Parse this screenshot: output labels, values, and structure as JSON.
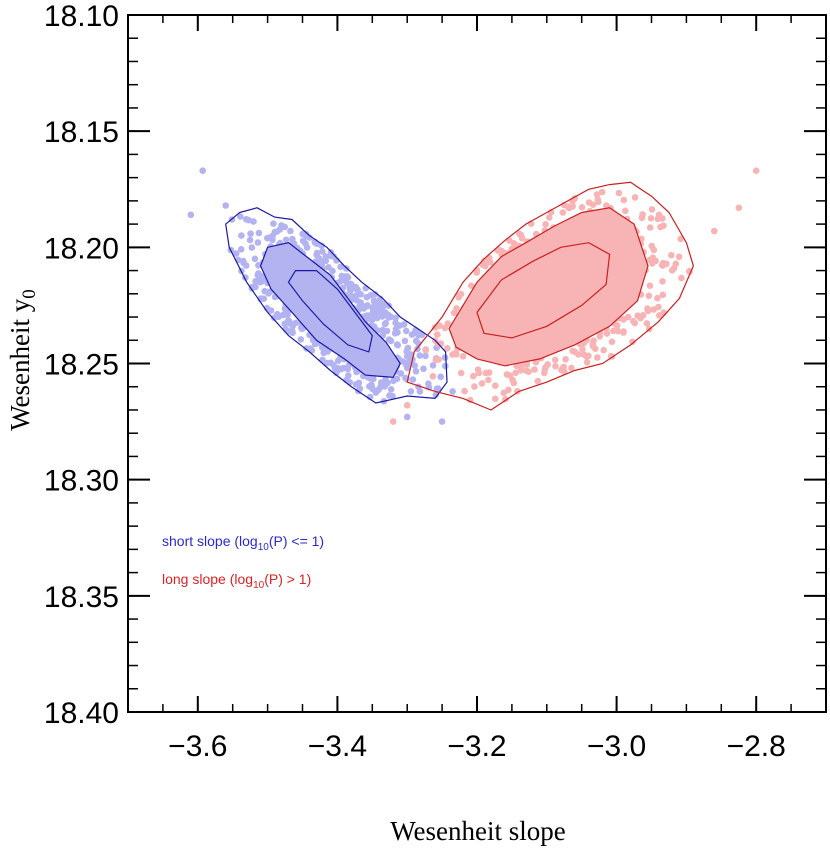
{
  "chart_data": {
    "type": "scatter",
    "title": "",
    "xlabel": "Wesenheit slope",
    "ylabel": "Wesenheit y",
    "ylabel_subscript": "0",
    "xlim": [
      -3.7,
      -2.7
    ],
    "ylim": [
      18.1,
      18.4
    ],
    "y_inverted": true,
    "grid": false,
    "x_ticks": [
      -3.6,
      -3.4,
      -3.2,
      -3.0,
      -2.8
    ],
    "x_tick_labels": [
      "−3.6",
      "−3.4",
      "−3.2",
      "−3.0",
      "−2.8"
    ],
    "y_ticks": [
      18.1,
      18.15,
      18.2,
      18.25,
      18.3,
      18.35,
      18.4
    ],
    "y_tick_labels": [
      "18.10",
      "18.15",
      "18.20",
      "18.25",
      "18.30",
      "18.35",
      "18.40"
    ],
    "series": [
      {
        "name": "short slope",
        "legend_main": "short slope (log",
        "legend_sub": "10",
        "legend_tail": "(P) <= 1)",
        "point_color": "#b3b3f2",
        "line_color": "#1a1aa6",
        "text_color": "#2a2ad0",
        "center": [
          -3.4,
          18.225
        ],
        "outliers": [
          [
            -3.61,
            18.186
          ],
          [
            -3.593,
            18.167
          ],
          [
            -3.56,
            18.182
          ],
          [
            -3.3,
            18.273
          ],
          [
            -3.25,
            18.275
          ],
          [
            -3.235,
            18.262
          ]
        ],
        "contours": [
          [
            [
              -3.54,
              18.185
            ],
            [
              -3.515,
              18.183
            ],
            [
              -3.49,
              18.187
            ],
            [
              -3.465,
              18.188
            ],
            [
              -3.44,
              18.195
            ],
            [
              -3.415,
              18.2
            ],
            [
              -3.39,
              18.208
            ],
            [
              -3.365,
              18.215
            ],
            [
              -3.335,
              18.222
            ],
            [
              -3.31,
              18.23
            ],
            [
              -3.285,
              18.235
            ],
            [
              -3.26,
              18.24
            ],
            [
              -3.245,
              18.245
            ],
            [
              -3.243,
              18.258
            ],
            [
              -3.26,
              18.265
            ],
            [
              -3.3,
              18.264
            ],
            [
              -3.345,
              18.267
            ],
            [
              -3.38,
              18.26
            ],
            [
              -3.41,
              18.253
            ],
            [
              -3.44,
              18.245
            ],
            [
              -3.47,
              18.238
            ],
            [
              -3.5,
              18.228
            ],
            [
              -3.53,
              18.215
            ],
            [
              -3.555,
              18.2
            ],
            [
              -3.56,
              18.19
            ]
          ],
          [
            [
              -3.5,
              18.2
            ],
            [
              -3.47,
              18.198
            ],
            [
              -3.44,
              18.205
            ],
            [
              -3.41,
              18.212
            ],
            [
              -3.385,
              18.222
            ],
            [
              -3.36,
              18.232
            ],
            [
              -3.33,
              18.241
            ],
            [
              -3.31,
              18.25
            ],
            [
              -3.32,
              18.256
            ],
            [
              -3.36,
              18.255
            ],
            [
              -3.39,
              18.248
            ],
            [
              -3.43,
              18.24
            ],
            [
              -3.465,
              18.228
            ],
            [
              -3.495,
              18.218
            ],
            [
              -3.51,
              18.208
            ]
          ],
          [
            [
              -3.46,
              18.21
            ],
            [
              -3.43,
              18.21
            ],
            [
              -3.4,
              18.218
            ],
            [
              -3.375,
              18.228
            ],
            [
              -3.35,
              18.238
            ],
            [
              -3.355,
              18.245
            ],
            [
              -3.385,
              18.242
            ],
            [
              -3.42,
              18.233
            ],
            [
              -3.45,
              18.223
            ],
            [
              -3.47,
              18.215
            ]
          ]
        ]
      },
      {
        "name": "long slope",
        "legend_main": "long slope (log",
        "legend_sub": "10",
        "legend_tail": "(P) > 1)",
        "point_color": "#f8b4b4",
        "line_color": "#cc1f1f",
        "text_color": "#dd2222",
        "center": [
          -3.1,
          18.22
        ],
        "outliers": [
          [
            -2.8,
            18.167
          ],
          [
            -2.825,
            18.183
          ],
          [
            -2.86,
            18.193
          ],
          [
            -3.32,
            18.275
          ],
          [
            -3.3,
            18.268
          ]
        ],
        "contours": [
          [
            [
              -3.29,
              18.245
            ],
            [
              -3.25,
              18.23
            ],
            [
              -3.22,
              18.215
            ],
            [
              -3.19,
              18.205
            ],
            [
              -3.16,
              18.197
            ],
            [
              -3.13,
              18.19
            ],
            [
              -3.1,
              18.185
            ],
            [
              -3.07,
              18.18
            ],
            [
              -3.04,
              18.175
            ],
            [
              -3.01,
              18.173
            ],
            [
              -2.98,
              18.172
            ],
            [
              -2.95,
              18.178
            ],
            [
              -2.925,
              18.185
            ],
            [
              -2.9,
              18.198
            ],
            [
              -2.89,
              18.208
            ],
            [
              -2.91,
              18.222
            ],
            [
              -2.94,
              18.232
            ],
            [
              -2.98,
              18.242
            ],
            [
              -3.02,
              18.25
            ],
            [
              -3.06,
              18.253
            ],
            [
              -3.1,
              18.258
            ],
            [
              -3.14,
              18.262
            ],
            [
              -3.18,
              18.27
            ],
            [
              -3.22,
              18.265
            ],
            [
              -3.26,
              18.262
            ],
            [
              -3.3,
              18.258
            ]
          ],
          [
            [
              -3.24,
              18.235
            ],
            [
              -3.2,
              18.215
            ],
            [
              -3.165,
              18.204
            ],
            [
              -3.13,
              18.198
            ],
            [
              -3.09,
              18.191
            ],
            [
              -3.05,
              18.185
            ],
            [
              -3.01,
              18.183
            ],
            [
              -2.975,
              18.19
            ],
            [
              -2.955,
              18.208
            ],
            [
              -2.97,
              18.223
            ],
            [
              -3.01,
              18.234
            ],
            [
              -3.06,
              18.242
            ],
            [
              -3.11,
              18.248
            ],
            [
              -3.16,
              18.251
            ],
            [
              -3.2,
              18.248
            ],
            [
              -3.23,
              18.243
            ]
          ],
          [
            [
              -3.2,
              18.228
            ],
            [
              -3.165,
              18.214
            ],
            [
              -3.12,
              18.206
            ],
            [
              -3.08,
              18.2
            ],
            [
              -3.04,
              18.198
            ],
            [
              -3.01,
              18.203
            ],
            [
              -3.015,
              18.216
            ],
            [
              -3.05,
              18.225
            ],
            [
              -3.1,
              18.234
            ],
            [
              -3.15,
              18.239
            ],
            [
              -3.19,
              18.237
            ]
          ]
        ]
      }
    ]
  }
}
